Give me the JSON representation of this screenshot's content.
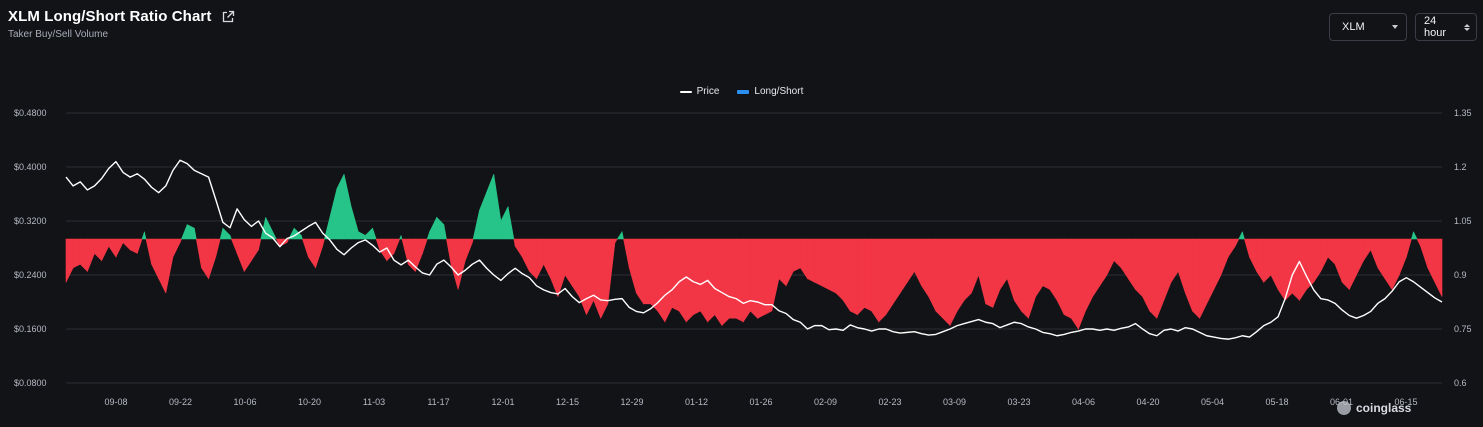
{
  "header": {
    "title": "XLM Long/Short Ratio Chart",
    "subtitle": "Taker Buy/Sell Volume"
  },
  "controls": {
    "symbol": "XLM",
    "interval": "24 hour"
  },
  "watermark": "coinglass",
  "colors": {
    "background": "#121317",
    "price": "#ffffff",
    "long": "#26c488",
    "short": "#f23645",
    "long_short_legend": "#2a8ff0",
    "grid": "#2a2d35"
  },
  "chart_data": {
    "type": "line",
    "legend": [
      "Price",
      "Long/Short"
    ],
    "legend_position": "top-center",
    "x_tick_labels": [
      "09-08",
      "09-22",
      "10-06",
      "10-20",
      "11-03",
      "11-17",
      "12-01",
      "12-15",
      "12-29",
      "01-12",
      "01-26",
      "02-09",
      "02-23",
      "03-09",
      "03-23",
      "04-06",
      "04-20",
      "05-04",
      "05-18",
      "06-01",
      "06-15"
    ],
    "y_left": {
      "tick_labels": [
        "$0.4800",
        "$0.4000",
        "$0.3200",
        "$0.2400",
        "$0.1600",
        "$0.0800"
      ],
      "range": [
        0.08,
        0.48
      ]
    },
    "y_right": {
      "tick_labels": [
        "1.35",
        "1.2",
        "1.05",
        "0.9",
        "0.75",
        "0.6"
      ],
      "range": [
        0.6,
        1.35
      ],
      "baseline": 1.0
    },
    "grid": true,
    "series": [
      {
        "name": "Price",
        "axis": "left",
        "values": [
          0.385,
          0.372,
          0.378,
          0.366,
          0.372,
          0.383,
          0.398,
          0.408,
          0.392,
          0.385,
          0.39,
          0.382,
          0.37,
          0.362,
          0.372,
          0.395,
          0.41,
          0.405,
          0.395,
          0.39,
          0.385,
          0.352,
          0.318,
          0.31,
          0.338,
          0.322,
          0.312,
          0.32,
          0.302,
          0.295,
          0.282,
          0.294,
          0.298,
          0.305,
          0.312,
          0.318,
          0.302,
          0.292,
          0.278,
          0.27,
          0.28,
          0.288,
          0.292,
          0.284,
          0.274,
          0.28,
          0.262,
          0.255,
          0.262,
          0.252,
          0.243,
          0.24,
          0.256,
          0.262,
          0.252,
          0.24,
          0.247,
          0.256,
          0.262,
          0.25,
          0.24,
          0.232,
          0.242,
          0.25,
          0.242,
          0.236,
          0.224,
          0.218,
          0.214,
          0.212,
          0.22,
          0.208,
          0.199,
          0.205,
          0.21,
          0.203,
          0.202,
          0.204,
          0.205,
          0.192,
          0.186,
          0.184,
          0.19,
          0.199,
          0.21,
          0.218,
          0.23,
          0.237,
          0.23,
          0.226,
          0.232,
          0.22,
          0.214,
          0.208,
          0.205,
          0.198,
          0.202,
          0.2,
          0.196,
          0.196,
          0.187,
          0.183,
          0.174,
          0.17,
          0.16,
          0.165,
          0.165,
          0.159,
          0.16,
          0.158,
          0.166,
          0.162,
          0.16,
          0.157,
          0.16,
          0.16,
          0.156,
          0.154,
          0.155,
          0.156,
          0.153,
          0.151,
          0.152,
          0.156,
          0.16,
          0.165,
          0.168,
          0.171,
          0.174,
          0.17,
          0.168,
          0.162,
          0.166,
          0.17,
          0.168,
          0.163,
          0.16,
          0.155,
          0.153,
          0.15,
          0.152,
          0.155,
          0.157,
          0.16,
          0.16,
          0.158,
          0.16,
          0.158,
          0.161,
          0.163,
          0.168,
          0.16,
          0.153,
          0.15,
          0.158,
          0.16,
          0.157,
          0.162,
          0.16,
          0.155,
          0.15,
          0.148,
          0.146,
          0.145,
          0.147,
          0.15,
          0.148,
          0.156,
          0.165,
          0.17,
          0.178,
          0.205,
          0.24,
          0.26,
          0.238,
          0.218,
          0.205,
          0.203,
          0.198,
          0.188,
          0.18,
          0.176,
          0.18,
          0.186,
          0.198,
          0.205,
          0.216,
          0.23,
          0.236,
          0.23,
          0.222,
          0.214,
          0.206,
          0.2
        ]
      },
      {
        "name": "Long/Short",
        "axis": "right",
        "baseline": 1.0,
        "values": [
          0.88,
          0.92,
          0.93,
          0.91,
          0.96,
          0.94,
          0.98,
          0.95,
          0.99,
          0.97,
          0.96,
          1.02,
          0.93,
          0.89,
          0.85,
          0.95,
          0.99,
          1.04,
          1.03,
          0.92,
          0.89,
          0.95,
          1.03,
          1.01,
          0.96,
          0.91,
          0.94,
          0.97,
          1.06,
          1.02,
          0.98,
          0.99,
          1.03,
          1.01,
          0.95,
          0.92,
          0.98,
          1.06,
          1.14,
          1.18,
          1.09,
          1.02,
          1.01,
          1.03,
          0.97,
          0.94,
          0.96,
          1.01,
          0.93,
          0.91,
          0.96,
          1.02,
          1.06,
          1.04,
          0.93,
          0.86,
          0.94,
          0.99,
          1.08,
          1.13,
          1.18,
          1.05,
          1.09,
          0.98,
          0.95,
          0.91,
          0.89,
          0.93,
          0.89,
          0.84,
          0.9,
          0.87,
          0.84,
          0.79,
          0.83,
          0.78,
          0.82,
          0.99,
          1.02,
          0.92,
          0.85,
          0.82,
          0.82,
          0.8,
          0.77,
          0.81,
          0.8,
          0.77,
          0.79,
          0.8,
          0.77,
          0.79,
          0.76,
          0.78,
          0.78,
          0.77,
          0.8,
          0.78,
          0.79,
          0.8,
          0.89,
          0.87,
          0.91,
          0.92,
          0.89,
          0.88,
          0.87,
          0.86,
          0.85,
          0.83,
          0.8,
          0.79,
          0.81,
          0.8,
          0.77,
          0.79,
          0.82,
          0.85,
          0.88,
          0.91,
          0.87,
          0.84,
          0.8,
          0.78,
          0.76,
          0.8,
          0.83,
          0.85,
          0.9,
          0.82,
          0.81,
          0.86,
          0.89,
          0.83,
          0.8,
          0.78,
          0.84,
          0.87,
          0.86,
          0.83,
          0.79,
          0.78,
          0.75,
          0.8,
          0.84,
          0.87,
          0.9,
          0.94,
          0.92,
          0.89,
          0.86,
          0.84,
          0.8,
          0.78,
          0.83,
          0.88,
          0.91,
          0.85,
          0.8,
          0.78,
          0.82,
          0.86,
          0.9,
          0.95,
          0.98,
          1.02,
          0.95,
          0.91,
          0.88,
          0.9,
          0.86,
          0.83,
          0.85,
          0.83,
          0.86,
          0.88,
          0.91,
          0.95,
          0.93,
          0.88,
          0.86,
          0.9,
          0.94,
          0.97,
          0.92,
          0.89,
          0.86,
          0.9,
          0.95,
          1.02,
          0.98,
          0.92,
          0.88,
          0.84
        ]
      }
    ]
  }
}
